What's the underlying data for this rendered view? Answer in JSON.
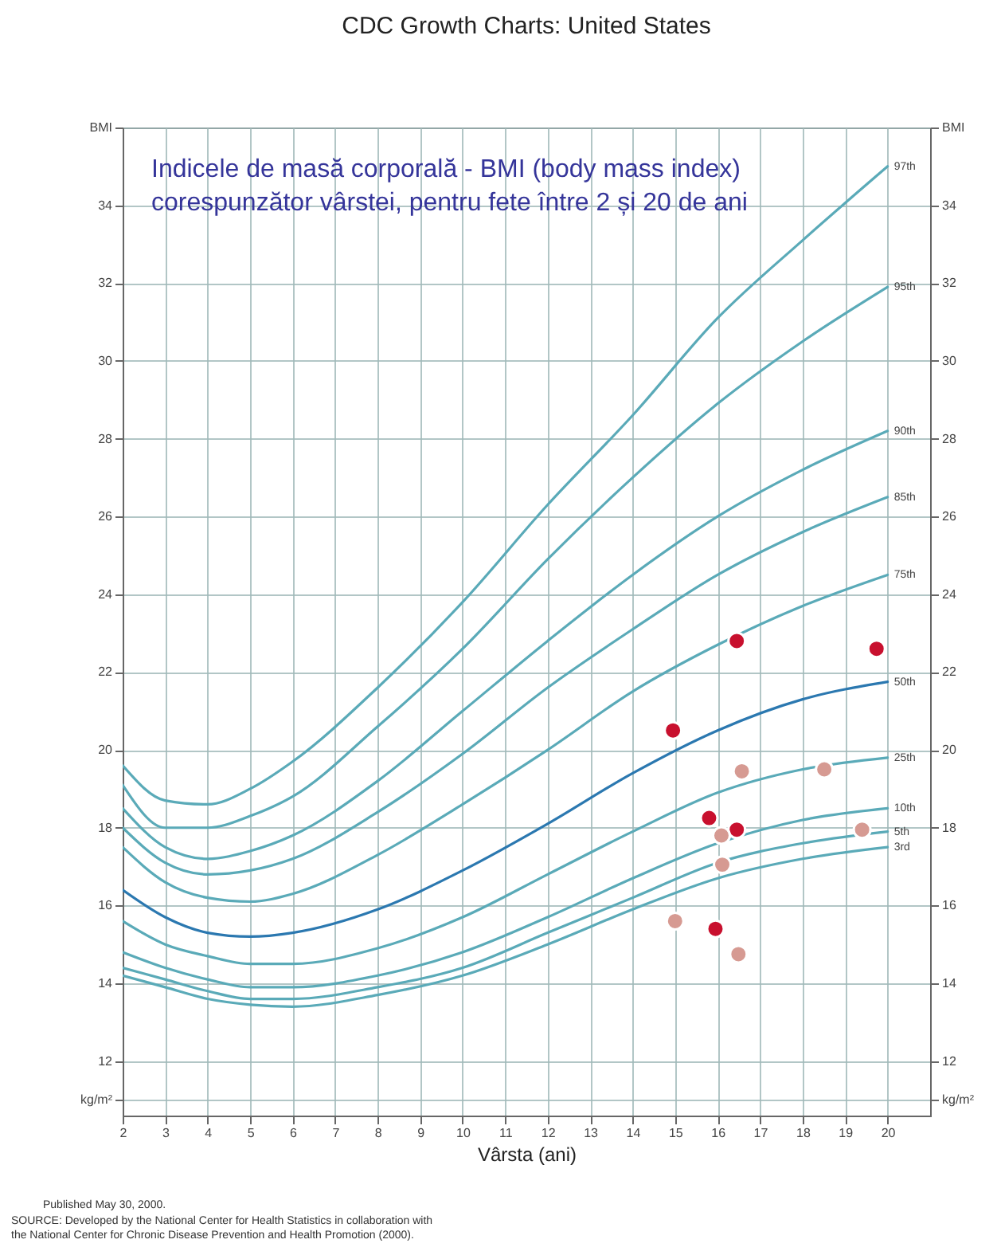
{
  "chart_data": {
    "type": "line",
    "title": "CDC Growth Charts: United States",
    "xlabel": "Vârsta (ani)",
    "annotations": [
      "Indicele de masă corporală - BMI (body mass index)\ncorespunzător vârstei, pentru fete între 2 și 20 de ani",
      "Published May 30, 2000.",
      "SOURCE: Developed by the National Center for Health Statistics in collaboration with\nthe National Center for Chronic Disease Prevention and Health Promotion (2000)."
    ],
    "x": [
      2,
      3,
      4,
      5,
      6,
      8,
      10,
      12,
      14,
      16,
      18,
      20
    ],
    "series": [
      {
        "name": "97th",
        "color": "#5aaab8",
        "values": [
          19.6,
          18.7,
          18.6,
          19.0,
          19.7,
          21.6,
          23.8,
          26.3,
          28.6,
          31.1,
          33.1,
          35.0
        ]
      },
      {
        "name": "95th",
        "color": "#5aaab8",
        "values": [
          19.1,
          18.0,
          18.0,
          18.3,
          18.8,
          20.6,
          22.6,
          24.9,
          27.0,
          28.9,
          30.5,
          31.9
        ]
      },
      {
        "name": "90th",
        "color": "#5aaab8",
        "values": [
          18.5,
          17.5,
          17.2,
          17.4,
          17.8,
          19.2,
          21.0,
          22.8,
          24.5,
          26.0,
          27.2,
          28.2
        ]
      },
      {
        "name": "85th",
        "color": "#5aaab8",
        "values": [
          18.0,
          17.1,
          16.8,
          16.9,
          17.2,
          18.4,
          19.9,
          21.6,
          23.1,
          24.5,
          25.6,
          26.5
        ]
      },
      {
        "name": "75th",
        "color": "#5aaab8",
        "values": [
          17.5,
          16.6,
          16.2,
          16.1,
          16.3,
          17.3,
          18.6,
          20.0,
          21.5,
          22.7,
          23.7,
          24.5
        ]
      },
      {
        "name": "50th",
        "color": "#2b78b0",
        "values": [
          16.4,
          15.7,
          15.3,
          15.2,
          15.3,
          15.9,
          16.9,
          18.1,
          19.4,
          20.5,
          21.3,
          21.75
        ]
      },
      {
        "name": "25th",
        "color": "#5aaab8",
        "values": [
          15.6,
          15.0,
          14.7,
          14.5,
          14.5,
          14.9,
          15.7,
          16.8,
          17.9,
          18.9,
          19.5,
          19.8
        ]
      },
      {
        "name": "10th",
        "color": "#5aaab8",
        "values": [
          14.8,
          14.4,
          14.1,
          13.9,
          13.9,
          14.2,
          14.8,
          15.7,
          16.7,
          17.6,
          18.2,
          18.5
        ]
      },
      {
        "name": "5th",
        "color": "#5aaab8",
        "values": [
          14.4,
          14.1,
          13.8,
          13.6,
          13.6,
          13.9,
          14.4,
          15.3,
          16.2,
          17.1,
          17.6,
          17.9
        ]
      },
      {
        "name": "3rd",
        "color": "#5aaab8",
        "values": [
          14.2,
          13.9,
          13.6,
          13.45,
          13.4,
          13.7,
          14.2,
          15.0,
          15.9,
          16.7,
          17.2,
          17.5
        ]
      },
      {
        "type": "scatter",
        "marker": "circle",
        "color": "#c8102e",
        "x": [
          16.45,
          19.74,
          14.95,
          15.8,
          16.45,
          15.95
        ],
        "values": [
          22.8,
          22.6,
          20.5,
          18.25,
          17.95,
          15.4
        ]
      },
      {
        "type": "scatter",
        "marker": "circle",
        "color": "#d69a92",
        "x": [
          16.57,
          18.51,
          16.09,
          16.11,
          19.4,
          15.0,
          16.49
        ],
        "values": [
          19.45,
          19.5,
          17.8,
          17.05,
          17.95,
          15.6,
          14.75
        ]
      }
    ],
    "xlim": [
      2,
      21
    ],
    "xticks": [
      2,
      3,
      4,
      5,
      6,
      7,
      8,
      9,
      10,
      11,
      12,
      13,
      14,
      15,
      16,
      17,
      18,
      19,
      20
    ],
    "ylim": [
      10.6,
      36
    ],
    "yticks": [
      {
        "value": 11,
        "label": "kg/m²"
      },
      12,
      14,
      16,
      18,
      20,
      22,
      24,
      26,
      28,
      30,
      32,
      34,
      {
        "value": 36,
        "label": "BMI"
      }
    ],
    "y2lim": [
      10.6,
      36
    ],
    "y2ticks": [
      {
        "value": 11,
        "label": "kg/m²"
      },
      12,
      14,
      16,
      18,
      20,
      22,
      24,
      26,
      28,
      30,
      32,
      34,
      {
        "value": 36,
        "label": "BMI"
      }
    ],
    "grid": true
  }
}
